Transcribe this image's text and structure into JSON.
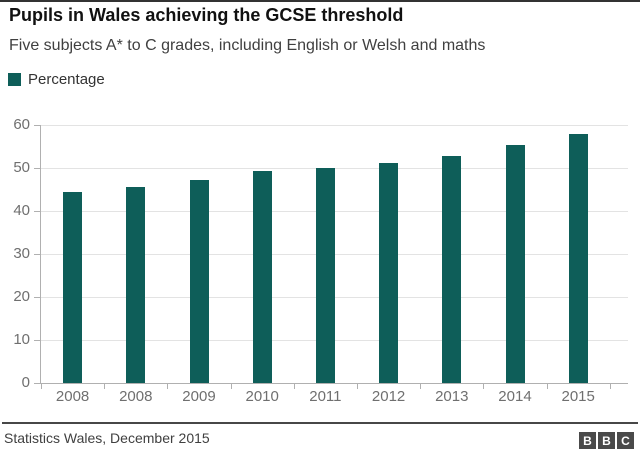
{
  "header": {
    "title": "Pupils in Wales achieving the GCSE threshold",
    "subtitle": "Five subjects A* to C grades, including English or Welsh and maths"
  },
  "legend": {
    "label": "Percentage",
    "color": "#0e5e59"
  },
  "chart_data": {
    "type": "bar",
    "title": "Pupils in Wales achieving the GCSE threshold",
    "subtitle": "Five subjects A* to C grades, including English or Welsh and maths",
    "series_name": "Percentage",
    "categories": [
      "2008",
      "2008",
      "2009",
      "2010",
      "2011",
      "2012",
      "2013",
      "2014",
      "2015"
    ],
    "values": [
      44.4,
      45.6,
      47.2,
      49.4,
      50.1,
      51.1,
      52.7,
      55.4,
      57.9
    ],
    "xlabel": "",
    "ylabel": "",
    "ylim": [
      0,
      60
    ],
    "yticks": [
      0,
      10,
      20,
      30,
      40,
      50,
      60
    ],
    "grid": true,
    "legend_position": "top-left",
    "bar_color": "#0e5e59",
    "grid_color": "#e3e3e3",
    "axis_color": "#b0b0b0",
    "tick_label_color": "#6f6f6f"
  },
  "footer": {
    "source": "Statistics Wales, December 2015",
    "logo_letters": [
      "B",
      "B",
      "C"
    ],
    "logo_block_color": "#4a4a4a",
    "logo_letter_color": "#ffffff"
  }
}
